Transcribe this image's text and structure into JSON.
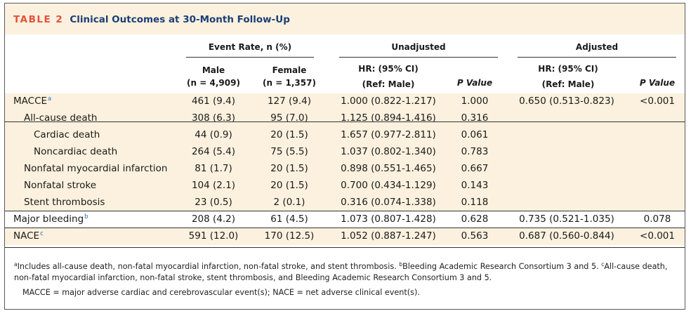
{
  "table": {
    "label": "TABLE 2",
    "title": "Clinical Outcomes at 30-Month Follow-Up",
    "groups": {
      "event_rate": "Event Rate, n (%)",
      "unadjusted": "Unadjusted",
      "adjusted": "Adjusted"
    },
    "columns": {
      "male_line1": "Male",
      "male_line2": "(n = 4,909)",
      "female_line1": "Female",
      "female_line2": "(n = 1,357)",
      "hr_line1": "HR: (95% CI)",
      "hr_line2": "(Ref: Male)",
      "p_value": "P Value",
      "adj_hr_line1": "HR: (95% CI)",
      "adj_hr_line2": "(Ref: Male)",
      "adj_p_value": "P Value"
    },
    "rows": [
      {
        "label": "MACCE",
        "sup": "a",
        "male": "461 (9.4)",
        "female": "127 (9.4)",
        "hr": "1.000 (0.822-1.217)",
        "p": "1.000",
        "adj_hr": "0.650 (0.513-0.823)",
        "adj_p": "<0.001"
      },
      {
        "label": "All-cause death",
        "sup": "",
        "male": "308 (6.3)",
        "female": "95 (7.0)",
        "hr": "1.125 (0.894-1.416)",
        "p": "0.316",
        "adj_hr": "",
        "adj_p": ""
      },
      {
        "label": "Cardiac death",
        "sup": "",
        "male": "44 (0.9)",
        "female": "20 (1.5)",
        "hr": "1.657 (0.977-2.811)",
        "p": "0.061",
        "adj_hr": "",
        "adj_p": ""
      },
      {
        "label": "Noncardiac death",
        "sup": "",
        "male": "264 (5.4)",
        "female": "75 (5.5)",
        "hr": "1.037 (0.802-1.340)",
        "p": "0.783",
        "adj_hr": "",
        "adj_p": ""
      },
      {
        "label": "Nonfatal myocardial infarction",
        "sup": "",
        "male": "81 (1.7)",
        "female": "20 (1.5)",
        "hr": "0.898 (0.551-1.465)",
        "p": "0.667",
        "adj_hr": "",
        "adj_p": ""
      },
      {
        "label": "Nonfatal stroke",
        "sup": "",
        "male": "104 (2.1)",
        "female": "20 (1.5)",
        "hr": "0.700 (0.434-1.129)",
        "p": "0.143",
        "adj_hr": "",
        "adj_p": ""
      },
      {
        "label": "Stent thrombosis",
        "sup": "",
        "male": "23 (0.5)",
        "female": "2 (0.1)",
        "hr": "0.316 (0.074-1.338)",
        "p": "0.118",
        "adj_hr": "",
        "adj_p": ""
      },
      {
        "label": "Major bleeding",
        "sup": "b",
        "male": "208 (4.2)",
        "female": "61 (4.5)",
        "hr": "1.073 (0.807-1.428)",
        "p": "0.628",
        "adj_hr": "0.735 (0.521-1.035)",
        "adj_p": "0.078"
      },
      {
        "label": "NACE",
        "sup": "c",
        "male": "591 (12.0)",
        "female": "170 (12.5)",
        "hr": "1.052 (0.887-1.247)",
        "p": "0.563",
        "adj_hr": "0.687 (0.560-0.844)",
        "adj_p": "<0.001"
      }
    ],
    "footnotes": {
      "a_mark": "a",
      "a_text": "Includes all-cause death, non-fatal myocardial infarction, non-fatal stroke, and stent thrombosis. ",
      "b_mark": "b",
      "b_text": "Bleeding Academic Research Consortium 3 and 5. ",
      "c_mark": "c",
      "c_text": "All-cause death, non-fatal myocardial infarction, non-fatal stroke, stent thrombosis, and Bleeding Academic Research Consortium 3 and 5.",
      "abbrev": "MACCE = major adverse cardiac and cerebrovascular event(s); NACE = net adverse clinical event(s)."
    },
    "colors": {
      "label": "#e2513c",
      "title": "#1d3f77",
      "shade": "#fbf1de",
      "superscript": "#2a6fb8"
    }
  }
}
